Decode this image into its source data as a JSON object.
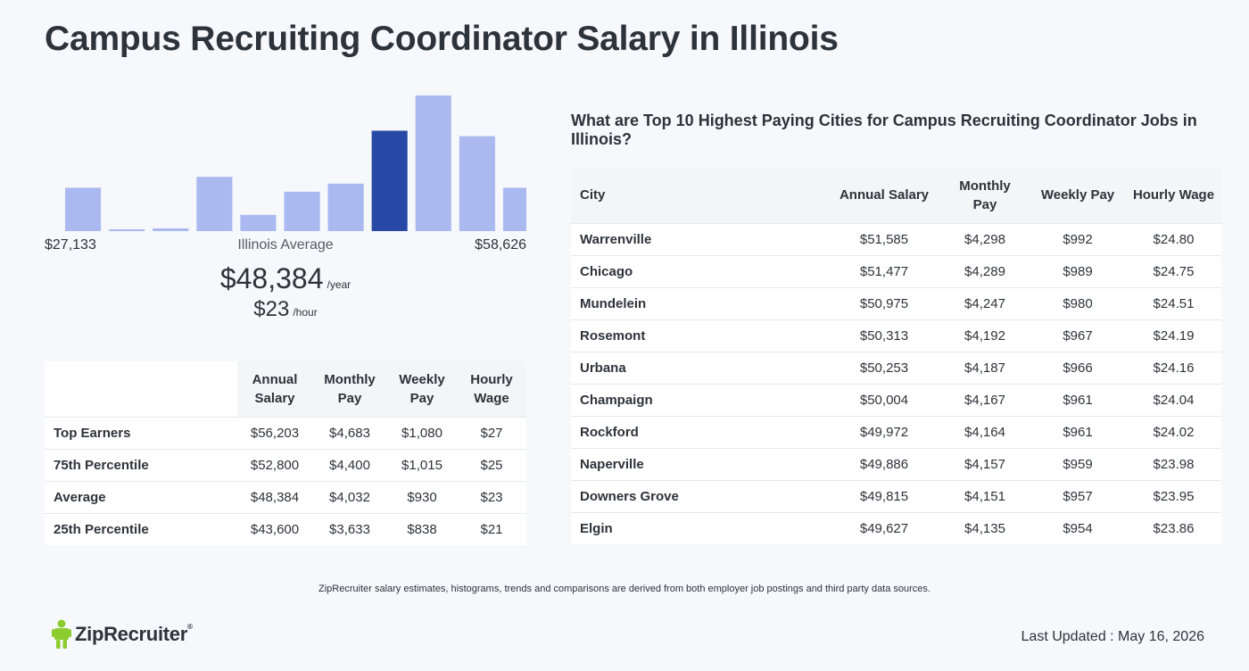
{
  "page": {
    "title": "Campus Recruiting Coordinator Salary in Illinois",
    "disclaimer": "ZipRecruiter salary estimates, histograms, trends and comparisons are derived from both employer job postings and third party data sources.",
    "brand": "ZipRecruiter",
    "brand_mark": "®",
    "last_updated": "Last Updated : May 16, 2026"
  },
  "colors": {
    "bar": "#aab9f0",
    "bar_highlight": "#2748a4",
    "logo_green": "#8ccc2f"
  },
  "chart_data": {
    "type": "bar",
    "min_label": "$27,133",
    "max_label": "$58,626",
    "center_label": "Illinois Average",
    "values": [
      32,
      1,
      2,
      40,
      12,
      29,
      35,
      74,
      100,
      70,
      32
    ],
    "highlight_index": 7
  },
  "average": {
    "annual": "$48,384",
    "annual_unit": "/year",
    "hourly": "$23",
    "hourly_unit": "/hour"
  },
  "percentile_table": {
    "headers": [
      "",
      "Annual Salary",
      "Monthly Pay",
      "Weekly Pay",
      "Hourly Wage"
    ],
    "rows": [
      [
        "Top Earners",
        "$56,203",
        "$4,683",
        "$1,080",
        "$27"
      ],
      [
        "75th Percentile",
        "$52,800",
        "$4,400",
        "$1,015",
        "$25"
      ],
      [
        "Average",
        "$48,384",
        "$4,032",
        "$930",
        "$23"
      ],
      [
        "25th Percentile",
        "$43,600",
        "$3,633",
        "$838",
        "$21"
      ]
    ]
  },
  "cities": {
    "heading": "What are Top 10 Highest Paying Cities for Campus Recruiting Coordinator Jobs in Illinois?",
    "headers": [
      "City",
      "Annual Salary",
      "Monthly Pay",
      "Weekly Pay",
      "Hourly Wage"
    ],
    "rows": [
      [
        "Warrenville",
        "$51,585",
        "$4,298",
        "$992",
        "$24.80"
      ],
      [
        "Chicago",
        "$51,477",
        "$4,289",
        "$989",
        "$24.75"
      ],
      [
        "Mundelein",
        "$50,975",
        "$4,247",
        "$980",
        "$24.51"
      ],
      [
        "Rosemont",
        "$50,313",
        "$4,192",
        "$967",
        "$24.19"
      ],
      [
        "Urbana",
        "$50,253",
        "$4,187",
        "$966",
        "$24.16"
      ],
      [
        "Champaign",
        "$50,004",
        "$4,167",
        "$961",
        "$24.04"
      ],
      [
        "Rockford",
        "$49,972",
        "$4,164",
        "$961",
        "$24.02"
      ],
      [
        "Naperville",
        "$49,886",
        "$4,157",
        "$959",
        "$23.98"
      ],
      [
        "Downers Grove",
        "$49,815",
        "$4,151",
        "$957",
        "$23.95"
      ],
      [
        "Elgin",
        "$49,627",
        "$4,135",
        "$954",
        "$23.86"
      ]
    ]
  }
}
